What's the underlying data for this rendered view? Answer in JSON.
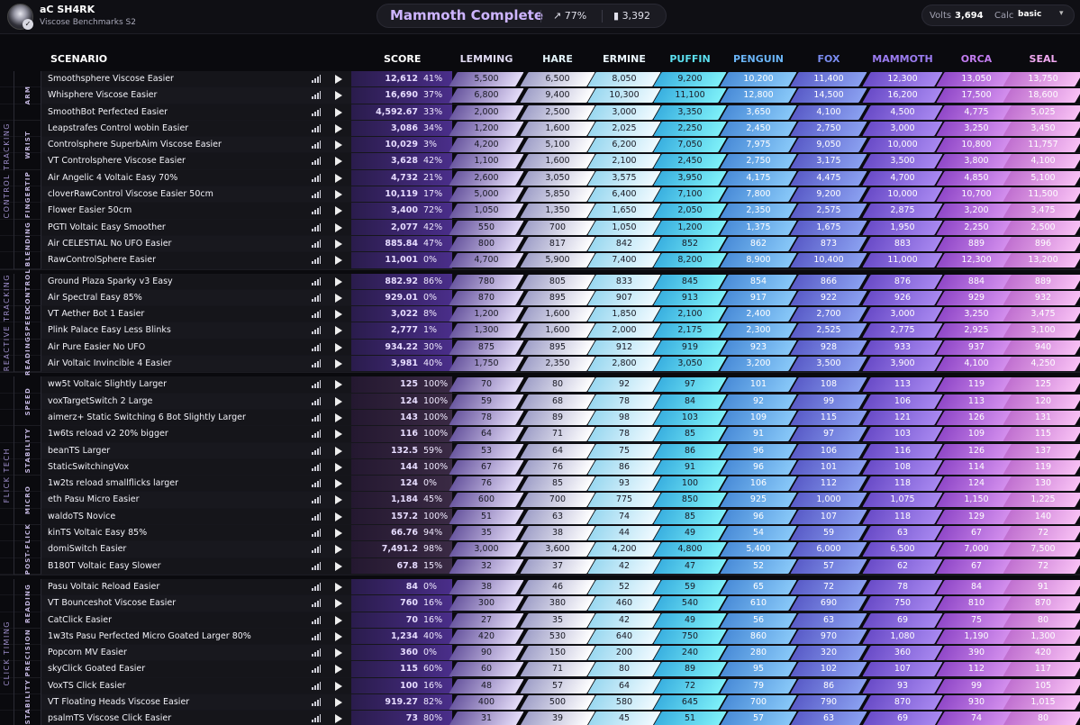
{
  "user": {
    "name": "aC SH4RK",
    "benchmark": "Viscose Benchmarks S2"
  },
  "rank": {
    "name": "Mammoth Complete",
    "progress": "77%",
    "energy": "3,392"
  },
  "volts": {
    "label": "Volts",
    "value": "3,694",
    "calc_label": "Calc",
    "calc_value": "basic"
  },
  "columns": {
    "scenario": "SCENARIO",
    "score": "SCORE"
  },
  "tiers": [
    {
      "name": "LEMMING",
      "color": "#ded8f0"
    },
    {
      "name": "HARE",
      "color": "#e2f2f8"
    },
    {
      "name": "ERMINE",
      "color": "#ecf8ff"
    },
    {
      "name": "PUFFIN",
      "color": "#5ce0f0"
    },
    {
      "name": "PENGUIN",
      "color": "#6ab4f6"
    },
    {
      "name": "FOX",
      "color": "#7a8cf0"
    },
    {
      "name": "MAMMOTH",
      "color": "#9b7cf0"
    },
    {
      "name": "ORCA",
      "color": "#c27cf0"
    },
    {
      "name": "SEAL",
      "color": "#f0a8f0"
    }
  ],
  "groups": [
    {
      "label": "CONTROL TRACKING",
      "subgroups": [
        {
          "label": "ARM",
          "rows": [
            {
              "name": "Smoothsphere Viscose Easier",
              "score": "12,612",
              "pct": "41%",
              "t": [
                "5,500",
                "6,500",
                "8,050",
                "9,200",
                "10,200",
                "11,400",
                "12,300",
                "13,050",
                "13,750"
              ]
            },
            {
              "name": "Whisphere Viscose Easier",
              "score": "16,690",
              "pct": "37%",
              "t": [
                "6,800",
                "9,400",
                "10,300",
                "11,100",
                "12,800",
                "14,500",
                "16,200",
                "17,500",
                "18,600"
              ]
            },
            {
              "name": "SmoothBot Perfected Easier",
              "score": "4,592.67",
              "pct": "33%",
              "t": [
                "2,000",
                "2,500",
                "3,000",
                "3,350",
                "3,650",
                "4,100",
                "4,500",
                "4,775",
                "5,025"
              ]
            }
          ]
        },
        {
          "label": "WRIST",
          "rows": [
            {
              "name": "Leapstrafes Control wobin Easier",
              "score": "3,086",
              "pct": "34%",
              "t": [
                "1,200",
                "1,600",
                "2,025",
                "2,250",
                "2,450",
                "2,750",
                "3,000",
                "3,250",
                "3,450"
              ]
            },
            {
              "name": "Controlsphere SuperbAim Viscose Easier",
              "score": "10,029",
              "pct": "3%",
              "t": [
                "4,200",
                "5,100",
                "6,200",
                "7,050",
                "7,975",
                "9,050",
                "10,000",
                "10,800",
                "11,757"
              ]
            },
            {
              "name": "VT Controlsphere Viscose Easier",
              "score": "3,628",
              "pct": "42%",
              "t": [
                "1,100",
                "1,600",
                "2,100",
                "2,450",
                "2,750",
                "3,175",
                "3,500",
                "3,800",
                "4,100"
              ]
            }
          ]
        },
        {
          "label": "FINGERTIP",
          "rows": [
            {
              "name": "Air Angelic 4 Voltaic Easy 70%",
              "score": "4,732",
              "pct": "21%",
              "t": [
                "2,600",
                "3,050",
                "3,575",
                "3,950",
                "4,175",
                "4,475",
                "4,700",
                "4,850",
                "5,100"
              ]
            },
            {
              "name": "cloverRawControl Viscose Easier 50cm",
              "score": "10,119",
              "pct": "17%",
              "t": [
                "5,000",
                "5,850",
                "6,400",
                "7,100",
                "7,800",
                "9,200",
                "10,000",
                "10,700",
                "11,500"
              ]
            },
            {
              "name": "Flower Easier 50cm",
              "score": "3,400",
              "pct": "72%",
              "t": [
                "1,050",
                "1,350",
                "1,650",
                "2,050",
                "2,350",
                "2,575",
                "2,875",
                "3,200",
                "3,475"
              ]
            }
          ]
        },
        {
          "label": "BLENDING",
          "rows": [
            {
              "name": "PGTI Voltaic Easy Smoother",
              "score": "2,077",
              "pct": "42%",
              "t": [
                "550",
                "700",
                "1,050",
                "1,200",
                "1,375",
                "1,675",
                "1,950",
                "2,250",
                "2,500"
              ]
            },
            {
              "name": "Air CELESTIAL No UFO Easier",
              "score": "885.84",
              "pct": "47%",
              "t": [
                "800",
                "817",
                "842",
                "852",
                "862",
                "873",
                "883",
                "889",
                "896"
              ]
            },
            {
              "name": "RawControlSphere Easier",
              "score": "11,001",
              "pct": "0%",
              "t": [
                "4,700",
                "5,900",
                "7,400",
                "8,200",
                "8,900",
                "10,400",
                "11,000",
                "12,300",
                "13,200"
              ]
            }
          ]
        }
      ]
    },
    {
      "label": "REACTIVE TRACKING",
      "subgroups": [
        {
          "label": "CONTROL",
          "rows": [
            {
              "name": "Ground Plaza Sparky v3 Easy",
              "score": "882.92",
              "pct": "86%",
              "t": [
                "780",
                "805",
                "833",
                "845",
                "854",
                "866",
                "876",
                "884",
                "889"
              ]
            },
            {
              "name": "Air Spectral Easy 85%",
              "score": "929.01",
              "pct": "0%",
              "t": [
                "870",
                "895",
                "907",
                "913",
                "917",
                "922",
                "926",
                "929",
                "932"
              ]
            }
          ]
        },
        {
          "label": "SPEED",
          "rows": [
            {
              "name": "VT Aether Bot 1 Easier",
              "score": "3,022",
              "pct": "8%",
              "t": [
                "1,200",
                "1,600",
                "1,850",
                "2,100",
                "2,400",
                "2,700",
                "3,000",
                "3,250",
                "3,475"
              ]
            },
            {
              "name": "Plink Palace Easy Less Blinks",
              "score": "2,777",
              "pct": "1%",
              "t": [
                "1,300",
                "1,600",
                "2,000",
                "2,175",
                "2,300",
                "2,525",
                "2,775",
                "2,925",
                "3,100"
              ]
            }
          ]
        },
        {
          "label": "READING",
          "rows": [
            {
              "name": "Air Pure Easier No UFO",
              "score": "934.22",
              "pct": "30%",
              "t": [
                "875",
                "895",
                "912",
                "919",
                "923",
                "928",
                "933",
                "937",
                "940"
              ]
            },
            {
              "name": "Air Voltaic Invincible 4 Easier",
              "score": "3,981",
              "pct": "40%",
              "t": [
                "1,750",
                "2,350",
                "2,800",
                "3,050",
                "3,200",
                "3,500",
                "3,900",
                "4,100",
                "4,250"
              ]
            }
          ]
        }
      ]
    },
    {
      "label": "FLICK TECH",
      "subgroups": [
        {
          "label": "SPEED",
          "rows": [
            {
              "name": "ww5t Voltaic Slightly Larger",
              "score": "125",
              "pct": "100%",
              "t": [
                "70",
                "80",
                "92",
                "97",
                "101",
                "108",
                "113",
                "119",
                "125"
              ]
            },
            {
              "name": "voxTargetSwitch 2 Large",
              "score": "124",
              "pct": "100%",
              "t": [
                "59",
                "68",
                "78",
                "84",
                "92",
                "99",
                "106",
                "113",
                "120"
              ]
            },
            {
              "name": "aimerz+ Static Switching 6 Bot Slightly Larger",
              "score": "143",
              "pct": "100%",
              "t": [
                "78",
                "89",
                "98",
                "103",
                "109",
                "115",
                "121",
                "126",
                "131"
              ]
            }
          ]
        },
        {
          "label": "STABILITY",
          "rows": [
            {
              "name": "1w6ts reload v2 20% bigger",
              "score": "116",
              "pct": "100%",
              "t": [
                "64",
                "71",
                "78",
                "85",
                "91",
                "97",
                "103",
                "109",
                "115"
              ]
            },
            {
              "name": "beanTS Larger",
              "score": "132.5",
              "pct": "59%",
              "t": [
                "53",
                "64",
                "75",
                "86",
                "96",
                "106",
                "116",
                "126",
                "137"
              ]
            },
            {
              "name": "StaticSwitchingVox",
              "score": "144",
              "pct": "100%",
              "t": [
                "67",
                "76",
                "86",
                "91",
                "96",
                "101",
                "108",
                "114",
                "119"
              ]
            }
          ]
        },
        {
          "label": "MICRO",
          "rows": [
            {
              "name": "1w2ts reload smallflicks larger",
              "score": "124",
              "pct": "0%",
              "t": [
                "76",
                "85",
                "93",
                "100",
                "106",
                "112",
                "118",
                "124",
                "130"
              ]
            },
            {
              "name": "eth Pasu Micro Easier",
              "score": "1,184",
              "pct": "45%",
              "t": [
                "600",
                "700",
                "775",
                "850",
                "925",
                "1,000",
                "1,075",
                "1,150",
                "1,225"
              ]
            },
            {
              "name": "waldoTS Novice",
              "score": "157.2",
              "pct": "100%",
              "t": [
                "51",
                "63",
                "74",
                "85",
                "96",
                "107",
                "118",
                "129",
                "140"
              ]
            }
          ]
        },
        {
          "label": "POST-FLICK",
          "rows": [
            {
              "name": "kinTS Voltaic Easy 85%",
              "score": "66.76",
              "pct": "94%",
              "t": [
                "35",
                "38",
                "44",
                "49",
                "54",
                "59",
                "63",
                "67",
                "72"
              ]
            },
            {
              "name": "domiSwitch Easier",
              "score": "7,491.2",
              "pct": "98%",
              "t": [
                "3,000",
                "3,600",
                "4,200",
                "4,800",
                "5,400",
                "6,000",
                "6,500",
                "7,000",
                "7,500"
              ]
            },
            {
              "name": "B180T Voltaic Easy Slower",
              "score": "67.8",
              "pct": "15%",
              "t": [
                "32",
                "37",
                "42",
                "47",
                "52",
                "57",
                "62",
                "67",
                "72"
              ]
            }
          ]
        }
      ]
    },
    {
      "label": "CLICK TIMING",
      "subgroups": [
        {
          "label": "READING",
          "rows": [
            {
              "name": "Pasu Voltaic Reload Easier",
              "score": "84",
              "pct": "0%",
              "t": [
                "38",
                "46",
                "52",
                "59",
                "65",
                "72",
                "78",
                "84",
                "91"
              ]
            },
            {
              "name": "VT Bounceshot Viscose Easier",
              "score": "760",
              "pct": "16%",
              "t": [
                "300",
                "380",
                "460",
                "540",
                "610",
                "690",
                "750",
                "810",
                "870"
              ]
            },
            {
              "name": "CatClick Easier",
              "score": "70",
              "pct": "16%",
              "t": [
                "27",
                "35",
                "42",
                "49",
                "56",
                "63",
                "69",
                "75",
                "80"
              ]
            }
          ]
        },
        {
          "label": "PRECISION",
          "rows": [
            {
              "name": "1w3ts Pasu Perfected Micro Goated Larger 80%",
              "score": "1,234",
              "pct": "40%",
              "t": [
                "420",
                "530",
                "640",
                "750",
                "860",
                "970",
                "1,080",
                "1,190",
                "1,300"
              ]
            },
            {
              "name": "Popcorn MV Easier",
              "score": "360",
              "pct": "0%",
              "t": [
                "90",
                "150",
                "200",
                "240",
                "280",
                "320",
                "360",
                "390",
                "420"
              ]
            },
            {
              "name": "skyClick Goated Easier",
              "score": "115",
              "pct": "60%",
              "t": [
                "60",
                "71",
                "80",
                "89",
                "95",
                "102",
                "107",
                "112",
                "117"
              ]
            }
          ]
        },
        {
          "label": "STABILITY",
          "rows": [
            {
              "name": "VoxTS Click Easier",
              "score": "100",
              "pct": "16%",
              "t": [
                "48",
                "57",
                "64",
                "72",
                "79",
                "86",
                "93",
                "99",
                "105"
              ]
            },
            {
              "name": "VT Floating Heads Viscose Easier",
              "score": "919.27",
              "pct": "82%",
              "t": [
                "400",
                "500",
                "580",
                "645",
                "700",
                "790",
                "870",
                "930",
                "1,015"
              ]
            },
            {
              "name": "psalmTS Viscose Click Easier",
              "score": "73",
              "pct": "80%",
              "t": [
                "31",
                "39",
                "45",
                "51",
                "57",
                "63",
                "69",
                "74",
                "80"
              ]
            }
          ]
        }
      ]
    }
  ]
}
